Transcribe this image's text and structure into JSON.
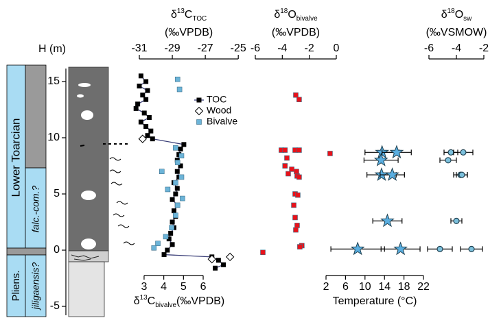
{
  "chart_data": [
    {
      "type": "scatter",
      "y_label": "H (m)",
      "ylim": [
        -6,
        16
      ],
      "yticks": [
        -5,
        0,
        5,
        10,
        15
      ],
      "x_label": {
        "delta": "δ",
        "mass": "13",
        "element": "C",
        "sub": "TOC",
        "unit": "(‰VPDB)"
      },
      "xlim": [
        -31.5,
        -24.8
      ],
      "xticks": [
        -31,
        -29,
        -27,
        -25
      ],
      "x2_label": {
        "delta": "δ",
        "mass": "13",
        "element": "C",
        "sub": "bivalve",
        "unit": "(‰VPDB)"
      },
      "x2lim": [
        2.34,
        7.95
      ],
      "x2ticks": [
        3,
        4,
        5,
        6
      ],
      "series": [
        {
          "name": "TOC",
          "color": "#000000",
          "line_color": "#3b3f78",
          "marker": "square",
          "x": [
            -30.9,
            -30.6,
            -31.0,
            -30.5,
            -30.8,
            -30.6,
            -31.1,
            -31.2,
            -30.7,
            -30.4,
            -30.9,
            -30.6,
            -30.3,
            -30.5,
            -30.2,
            -28.3,
            -28.5,
            -28.6,
            -28.7,
            -28.5,
            -28.7,
            -28.6,
            -28.9,
            -28.7,
            -28.8,
            -29.0,
            -28.7,
            -28.9,
            -28.8,
            -29.0,
            -28.9,
            -29.1,
            -29.2,
            -29.0,
            -29.3,
            -29.5,
            -26.6,
            -26.2,
            -25.9,
            -26.4
          ],
          "y": [
            15.5,
            15.0,
            14.6,
            14.2,
            13.8,
            13.4,
            13.0,
            12.6,
            12.2,
            11.8,
            11.4,
            11.0,
            10.6,
            10.2,
            9.9,
            9.4,
            9.0,
            8.5,
            8.0,
            7.5,
            7.0,
            6.5,
            6.0,
            5.5,
            5.0,
            4.5,
            4.0,
            3.5,
            3.0,
            2.5,
            2.0,
            1.5,
            1.0,
            0.5,
            0.0,
            -0.4,
            -0.6,
            -0.9,
            -1.3,
            -1.6
          ]
        },
        {
          "name": "Wood",
          "color": "#ffffff",
          "marker": "diamond",
          "x": [
            -30.8,
            -25.5,
            -26.6
          ],
          "y": [
            9.9,
            -0.6,
            -0.8
          ]
        },
        {
          "name": "Bivalve",
          "color": "#6cb4d8",
          "marker": "square",
          "axis": "x2",
          "x": [
            4.7,
            4.8,
            4.6,
            4.9,
            4.7,
            3.9,
            4.9,
            4.6,
            4.2,
            4.95,
            4.7,
            4.6,
            4.4,
            4.1,
            3.7,
            3.5
          ],
          "y": [
            15.2,
            14.3,
            9.1,
            8.4,
            7.8,
            7.0,
            6.5,
            6.0,
            5.4,
            4.6,
            4.0,
            3.1,
            2.0,
            1.2,
            0.6,
            0.2
          ]
        }
      ]
    },
    {
      "type": "scatter",
      "ylim": [
        -6,
        16
      ],
      "x_label": {
        "delta": "δ",
        "mass": "18",
        "element": "O",
        "sub": "bivalve",
        "unit": "(‰VPDB)"
      },
      "xlim": [
        -6.61,
        6.61
      ],
      "xticks": [
        -6,
        -4,
        -2,
        0
      ],
      "x2_label": "Temperature (°C)",
      "x2lim": [
        -14.2,
        22.42
      ],
      "x2ticks": [
        2,
        6,
        10,
        14,
        18,
        22
      ],
      "series": [
        {
          "color": "#e8121a",
          "marker": "square",
          "x": [
            -3.0,
            -2.75,
            -4.07,
            -3.8,
            -3.05,
            -2.75,
            -0.46,
            -3.66,
            -3.8,
            -3.3,
            -2.95,
            -3.56,
            -2.9,
            -2.75,
            -3.05,
            -2.85,
            -3.15,
            -3.05,
            -2.9,
            -3.0,
            -2.55,
            -2.7,
            -5.44
          ],
          "y": [
            13.8,
            13.4,
            8.9,
            8.9,
            8.9,
            8.9,
            8.6,
            8.2,
            7.5,
            7.2,
            7.0,
            6.8,
            6.6,
            6.5,
            5.0,
            4.9,
            4.0,
            2.9,
            2.2,
            1.8,
            0.4,
            0.3,
            -0.2
          ]
        },
        {
          "color": "#5aaee0",
          "marker": "star",
          "axis": "x2",
          "x": [
            13.5,
            16.5,
            13.3,
            13.4,
            15.6,
            14.6,
            8.5,
            17.3
          ],
          "xerr": [
            3.5,
            3.0,
            3.5,
            3.0,
            2.5,
            3.0,
            5.5,
            4.0
          ],
          "y": [
            8.7,
            8.7,
            8.0,
            6.7,
            6.7,
            2.6,
            0.1,
            0.1
          ]
        }
      ]
    },
    {
      "type": "scatter",
      "ylim": [
        -6,
        16
      ],
      "x_label": {
        "delta": "δ",
        "mass": "18",
        "element": "O",
        "sub": "sw",
        "unit": "(‰VSMOW)"
      },
      "xlim": [
        -6.25,
        -1.0
      ],
      "xticks": [
        -6,
        -4,
        -2
      ],
      "series": [
        {
          "color": "#7cc0dc",
          "marker": "circle",
          "x": [
            -4.4,
            -3.5,
            -4.6,
            -3.7,
            -3.6,
            -4.0,
            -5.2,
            -2.9
          ],
          "xerr": [
            0.5,
            0.7,
            0.6,
            0.5,
            0.4,
            0.4,
            0.9,
            0.8
          ],
          "y": [
            8.7,
            8.7,
            8.0,
            6.7,
            6.7,
            2.6,
            0.1,
            0.1
          ]
        }
      ]
    }
  ],
  "strat": {
    "stage": "Lower Toarcian",
    "zone_upper": "falc.-com.?",
    "stage_lower": "Pliens.",
    "zone_lower": "jiligaensis?"
  }
}
